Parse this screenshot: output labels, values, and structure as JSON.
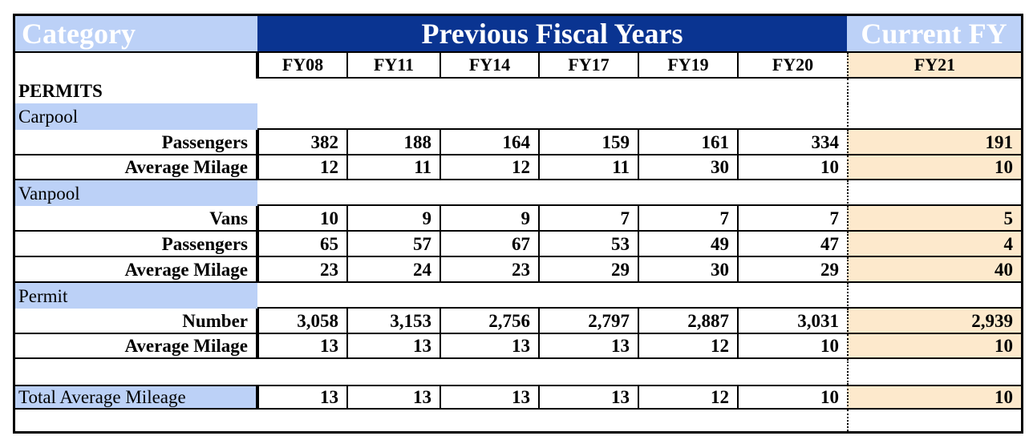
{
  "header": {
    "category": "Category",
    "previous": "Previous Fiscal Years",
    "current": "Current FY"
  },
  "years": [
    "FY08",
    "FY11",
    "FY14",
    "FY17",
    "FY19",
    "FY20",
    "FY21"
  ],
  "section_title": "PERMITS",
  "groups": {
    "carpool": "Carpool",
    "vanpool": "Vanpool",
    "permit": "Permit"
  },
  "rows": {
    "carpool_passengers": {
      "label": "Passengers",
      "values": [
        "382",
        "188",
        "164",
        "159",
        "161",
        "334",
        "191"
      ]
    },
    "carpool_avg": {
      "label": "Average Milage",
      "values": [
        "12",
        "11",
        "12",
        "11",
        "30",
        "10",
        "10"
      ]
    },
    "vanpool_vans": {
      "label": "Vans",
      "values": [
        "10",
        "9",
        "9",
        "7",
        "7",
        "7",
        "5"
      ]
    },
    "vanpool_passengers": {
      "label": "Passengers",
      "values": [
        "65",
        "57",
        "67",
        "53",
        "49",
        "47",
        "4"
      ]
    },
    "vanpool_avg": {
      "label": "Average Milage",
      "values": [
        "23",
        "24",
        "23",
        "29",
        "30",
        "29",
        "40"
      ]
    },
    "permit_number": {
      "label": "Number",
      "values": [
        "3,058",
        "3,153",
        "2,756",
        "2,797",
        "2,887",
        "3,031",
        "2,939"
      ]
    },
    "permit_avg": {
      "label": "Average Milage",
      "values": [
        "13",
        "13",
        "13",
        "13",
        "12",
        "10",
        "10"
      ]
    },
    "total": {
      "label": "Total Average Mileage",
      "values": [
        "13",
        "13",
        "13",
        "13",
        "12",
        "10",
        "10"
      ]
    }
  },
  "colors": {
    "header_blue": "#0a3491",
    "light_blue": "#bcd1f7",
    "peach": "#fde9cc"
  }
}
